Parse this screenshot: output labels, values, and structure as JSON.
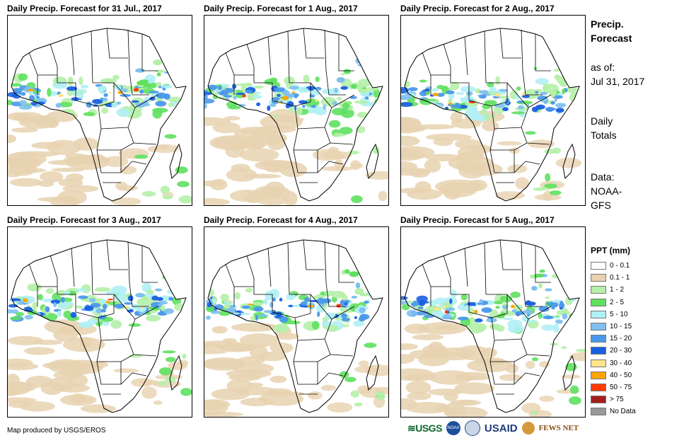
{
  "panels": [
    {
      "title": "Daily Precip. Forecast for 31 Jul., 2017",
      "variant": 0
    },
    {
      "title": "Daily Precip. Forecast for 1 Aug., 2017",
      "variant": 1
    },
    {
      "title": "Daily Precip. Forecast for 2 Aug., 2017",
      "variant": 2
    },
    {
      "title": "Daily Precip. Forecast for 3 Aug., 2017",
      "variant": 3
    },
    {
      "title": "Daily Precip. Forecast for 4 Aug., 2017",
      "variant": 4
    },
    {
      "title": "Daily Precip. Forecast for 5 Aug., 2017",
      "variant": 5
    }
  ],
  "sidebar": {
    "title_line1": "Precip.",
    "title_line2": "Forecast",
    "asof_label": "as of:",
    "asof_date": "Jul 31, 2017",
    "totals_line1": "Daily",
    "totals_line2": "Totals",
    "data_line1": "Data:",
    "data_line2": "NOAA-",
    "data_line3": "GFS"
  },
  "legend": {
    "title": "PPT (mm)",
    "items": [
      {
        "label": "0 - 0.1",
        "color": "#ffffff"
      },
      {
        "label": "0.1 - 1",
        "color": "#e8d2b0"
      },
      {
        "label": "1 - 2",
        "color": "#b5f0a8"
      },
      {
        "label": "2 - 5",
        "color": "#5fe05f"
      },
      {
        "label": "5 - 10",
        "color": "#b0f0f4"
      },
      {
        "label": "10 - 15",
        "color": "#7fc0f0"
      },
      {
        "label": "15 - 20",
        "color": "#4a98ea"
      },
      {
        "label": "20 - 30",
        "color": "#1a5fe0"
      },
      {
        "label": "30 - 40",
        "color": "#ffe48a"
      },
      {
        "label": "40 - 50",
        "color": "#ffa500"
      },
      {
        "label": "50 - 75",
        "color": "#ff3c00"
      },
      {
        "label": "> 75",
        "color": "#a51e1e"
      },
      {
        "label": "No Data",
        "color": "#999999"
      }
    ]
  },
  "footer": {
    "text": "Map produced by USGS/EROS"
  },
  "logos": {
    "usgs": "≋USGS",
    "noaa": "NOAA",
    "usaid": "USAID",
    "fews": "FEWS NET"
  }
}
